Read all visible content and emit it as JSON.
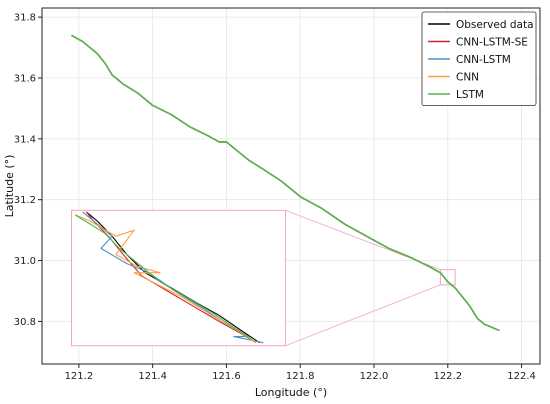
{
  "chart_data": {
    "type": "line",
    "title": "",
    "xlabel": "Longitude (°)",
    "ylabel": "Latitude (°)",
    "xlim": [
      121.1,
      122.45
    ],
    "ylim": [
      30.66,
      31.83
    ],
    "xticks": [
      121.2,
      121.4,
      121.6,
      121.8,
      122.0,
      122.2,
      122.4
    ],
    "xtick_labels": [
      "121.2",
      "121.4",
      "121.6",
      "121.8",
      "122.0",
      "122.2",
      "122.4"
    ],
    "yticks": [
      30.8,
      31.0,
      31.2,
      31.4,
      31.6,
      31.8
    ],
    "ytick_labels": [
      "30.8",
      "31.0",
      "31.2",
      "31.4",
      "31.6",
      "31.8"
    ],
    "grid": true,
    "legend_position": "top-right",
    "series": [
      {
        "name": "Observed data",
        "color": "#000000",
        "x": [
          121.18,
          121.21,
          121.25,
          121.27,
          121.29,
          121.32,
          121.36,
          121.4,
          121.45,
          121.5,
          121.55,
          121.58,
          121.6,
          121.61,
          121.63,
          121.66,
          121.7,
          121.75,
          121.8,
          121.86,
          121.92,
          121.98,
          122.04,
          122.1,
          122.15,
          122.18,
          122.2,
          122.22,
          122.24,
          122.26,
          122.28,
          122.3,
          122.34
        ],
        "y": [
          31.74,
          31.72,
          31.68,
          31.65,
          31.61,
          31.58,
          31.55,
          31.51,
          31.48,
          31.44,
          31.41,
          31.39,
          31.39,
          31.38,
          31.36,
          31.33,
          31.3,
          31.26,
          31.21,
          31.17,
          31.12,
          31.08,
          31.04,
          31.01,
          30.98,
          30.96,
          30.93,
          30.91,
          30.88,
          30.85,
          30.81,
          30.79,
          30.77
        ]
      },
      {
        "name": "CNN-LSTM-SE",
        "color": "#d62728",
        "x": [
          121.18,
          121.21,
          121.25,
          121.27,
          121.29,
          121.32,
          121.36,
          121.4,
          121.45,
          121.5,
          121.55,
          121.58,
          121.6,
          121.61,
          121.63,
          121.66,
          121.7,
          121.75,
          121.8,
          121.86,
          121.92,
          121.98,
          122.04,
          122.1,
          122.15,
          122.18,
          122.2,
          122.22,
          122.24,
          122.26,
          122.28,
          122.3,
          122.34
        ],
        "y": [
          31.74,
          31.72,
          31.68,
          31.65,
          31.61,
          31.58,
          31.55,
          31.51,
          31.48,
          31.44,
          31.41,
          31.39,
          31.39,
          31.38,
          31.36,
          31.33,
          31.3,
          31.26,
          31.21,
          31.17,
          31.12,
          31.08,
          31.04,
          31.01,
          30.98,
          30.96,
          30.93,
          30.91,
          30.88,
          30.85,
          30.81,
          30.79,
          30.77
        ]
      },
      {
        "name": "CNN-LSTM",
        "color": "#4f8fc4",
        "x": [
          121.18,
          121.21,
          121.24,
          121.25,
          121.27,
          121.29,
          121.32,
          121.36,
          121.4,
          121.45,
          121.5,
          121.55,
          121.58,
          121.6,
          121.61,
          121.63,
          121.66,
          121.7,
          121.75,
          121.8,
          121.86,
          121.92,
          121.98,
          122.04,
          122.1,
          122.15,
          122.18,
          122.2,
          122.22,
          122.24,
          122.26,
          122.28,
          122.3,
          122.34
        ],
        "y": [
          31.74,
          31.72,
          31.69,
          31.68,
          31.65,
          31.61,
          31.58,
          31.55,
          31.51,
          31.48,
          31.44,
          31.41,
          31.39,
          31.39,
          31.38,
          31.36,
          31.33,
          31.3,
          31.26,
          31.21,
          31.17,
          31.12,
          31.08,
          31.04,
          31.01,
          30.98,
          30.96,
          30.93,
          30.91,
          30.88,
          30.85,
          30.81,
          30.79,
          30.77
        ]
      },
      {
        "name": "CNN",
        "color": "#ff9f40",
        "x": [
          121.18,
          121.21,
          121.25,
          121.27,
          121.29,
          121.32,
          121.36,
          121.4,
          121.45,
          121.5,
          121.55,
          121.58,
          121.6,
          121.61,
          121.63,
          121.66,
          121.7,
          121.75,
          121.8,
          121.86,
          121.92,
          121.98,
          122.04,
          122.1,
          122.15,
          122.18,
          122.2,
          122.22,
          122.24,
          122.26,
          122.28,
          122.3,
          122.34
        ],
        "y": [
          31.74,
          31.72,
          31.68,
          31.65,
          31.61,
          31.58,
          31.55,
          31.51,
          31.48,
          31.44,
          31.41,
          31.39,
          31.39,
          31.38,
          31.36,
          31.33,
          31.3,
          31.26,
          31.21,
          31.17,
          31.12,
          31.08,
          31.04,
          31.01,
          30.98,
          30.96,
          30.93,
          30.91,
          30.88,
          30.85,
          30.81,
          30.79,
          30.77
        ]
      },
      {
        "name": "LSTM",
        "color": "#4fb84f",
        "x": [
          121.18,
          121.21,
          121.25,
          121.27,
          121.29,
          121.32,
          121.36,
          121.4,
          121.45,
          121.5,
          121.55,
          121.58,
          121.6,
          121.61,
          121.63,
          121.66,
          121.7,
          121.75,
          121.8,
          121.86,
          121.92,
          121.98,
          122.04,
          122.1,
          122.15,
          122.18,
          122.2,
          122.22,
          122.24,
          122.26,
          122.28,
          122.3,
          122.34
        ],
        "y": [
          31.74,
          31.72,
          31.68,
          31.65,
          31.61,
          31.58,
          31.55,
          31.51,
          31.48,
          31.44,
          31.41,
          31.39,
          31.39,
          31.38,
          31.36,
          31.33,
          31.3,
          31.26,
          31.21,
          31.17,
          31.12,
          31.08,
          31.04,
          31.01,
          30.98,
          30.96,
          30.93,
          30.91,
          30.88,
          30.85,
          30.81,
          30.79,
          30.77
        ]
      }
    ],
    "inset": {
      "source_xlim": [
        122.18,
        122.22
      ],
      "source_ylim": [
        30.92,
        30.97
      ],
      "display_xlim": [
        121.18,
        121.76
      ],
      "display_ylim": [
        30.72,
        31.165
      ],
      "color": "#f4a6bf",
      "series": [
        {
          "name": "Observed data",
          "color": "#000000",
          "x": [
            121.22,
            121.25,
            121.29,
            121.33,
            121.38,
            121.45,
            121.52,
            121.58,
            121.64,
            121.69
          ],
          "y": [
            31.16,
            31.13,
            31.08,
            31.02,
            30.96,
            30.91,
            30.86,
            30.82,
            30.77,
            30.73
          ]
        },
        {
          "name": "CNN-LSTM-SE",
          "color": "#d62728",
          "x": [
            121.22,
            121.24,
            121.28,
            121.32,
            121.37,
            121.44,
            121.51,
            121.58,
            121.64,
            121.68
          ],
          "y": [
            31.16,
            31.13,
            31.08,
            31.02,
            30.95,
            30.9,
            30.85,
            30.8,
            30.76,
            30.73
          ]
        },
        {
          "name": "CNN-LSTM",
          "color": "#4f8fc4",
          "x": [
            121.21,
            121.25,
            121.29,
            121.26,
            121.33,
            121.39,
            121.46,
            121.54,
            121.6,
            121.66,
            121.62,
            121.7
          ],
          "y": [
            31.16,
            31.12,
            31.08,
            31.04,
            30.99,
            30.96,
            30.9,
            30.84,
            30.79,
            30.75,
            30.75,
            30.73
          ]
        },
        {
          "name": "CNN",
          "color": "#ff9f40",
          "x": [
            121.19,
            121.23,
            121.3,
            121.35,
            121.3,
            121.36,
            121.42,
            121.35,
            121.48,
            121.56,
            121.63,
            121.68
          ],
          "y": [
            31.15,
            31.13,
            31.08,
            31.1,
            31.02,
            30.98,
            30.96,
            30.96,
            30.88,
            30.82,
            30.77,
            30.73
          ]
        },
        {
          "name": "LSTM",
          "color": "#4fb84f",
          "x": [
            121.19,
            121.23,
            121.27,
            121.31,
            121.36,
            121.42,
            121.49,
            121.56,
            121.62,
            121.67
          ],
          "y": [
            31.15,
            31.12,
            31.09,
            31.04,
            30.99,
            30.93,
            30.88,
            30.83,
            30.78,
            30.74
          ]
        }
      ]
    }
  }
}
